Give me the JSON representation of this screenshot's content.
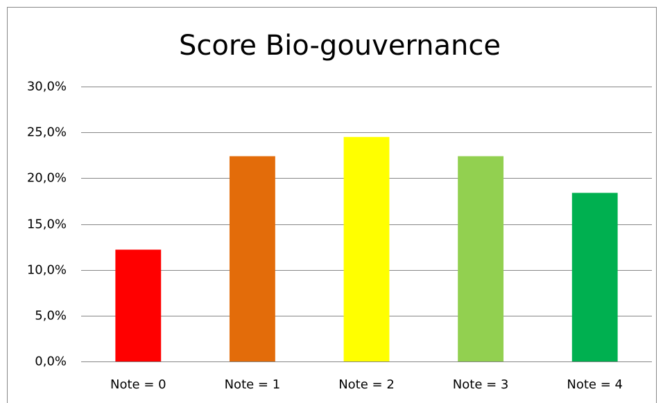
{
  "chart_data": {
    "type": "bar",
    "title": "Score Bio-gouvernance",
    "categories": [
      "Note = 0",
      "Note = 1",
      "Note = 2",
      "Note = 3",
      "Note = 4"
    ],
    "values": [
      12.2,
      22.4,
      24.5,
      22.4,
      18.4
    ],
    "colors": [
      "#ff0000",
      "#e36c0a",
      "#ffff00",
      "#92d050",
      "#00b050"
    ],
    "ylim": [
      0,
      30
    ],
    "yticks": [
      {
        "value": 0,
        "label": "0,0%"
      },
      {
        "value": 5,
        "label": "5,0%"
      },
      {
        "value": 10,
        "label": "10,0%"
      },
      {
        "value": 15,
        "label": "15,0%"
      },
      {
        "value": 20,
        "label": "20,0%"
      },
      {
        "value": 25,
        "label": "25,0%"
      },
      {
        "value": 30,
        "label": "30,0%"
      }
    ],
    "grid": true
  }
}
